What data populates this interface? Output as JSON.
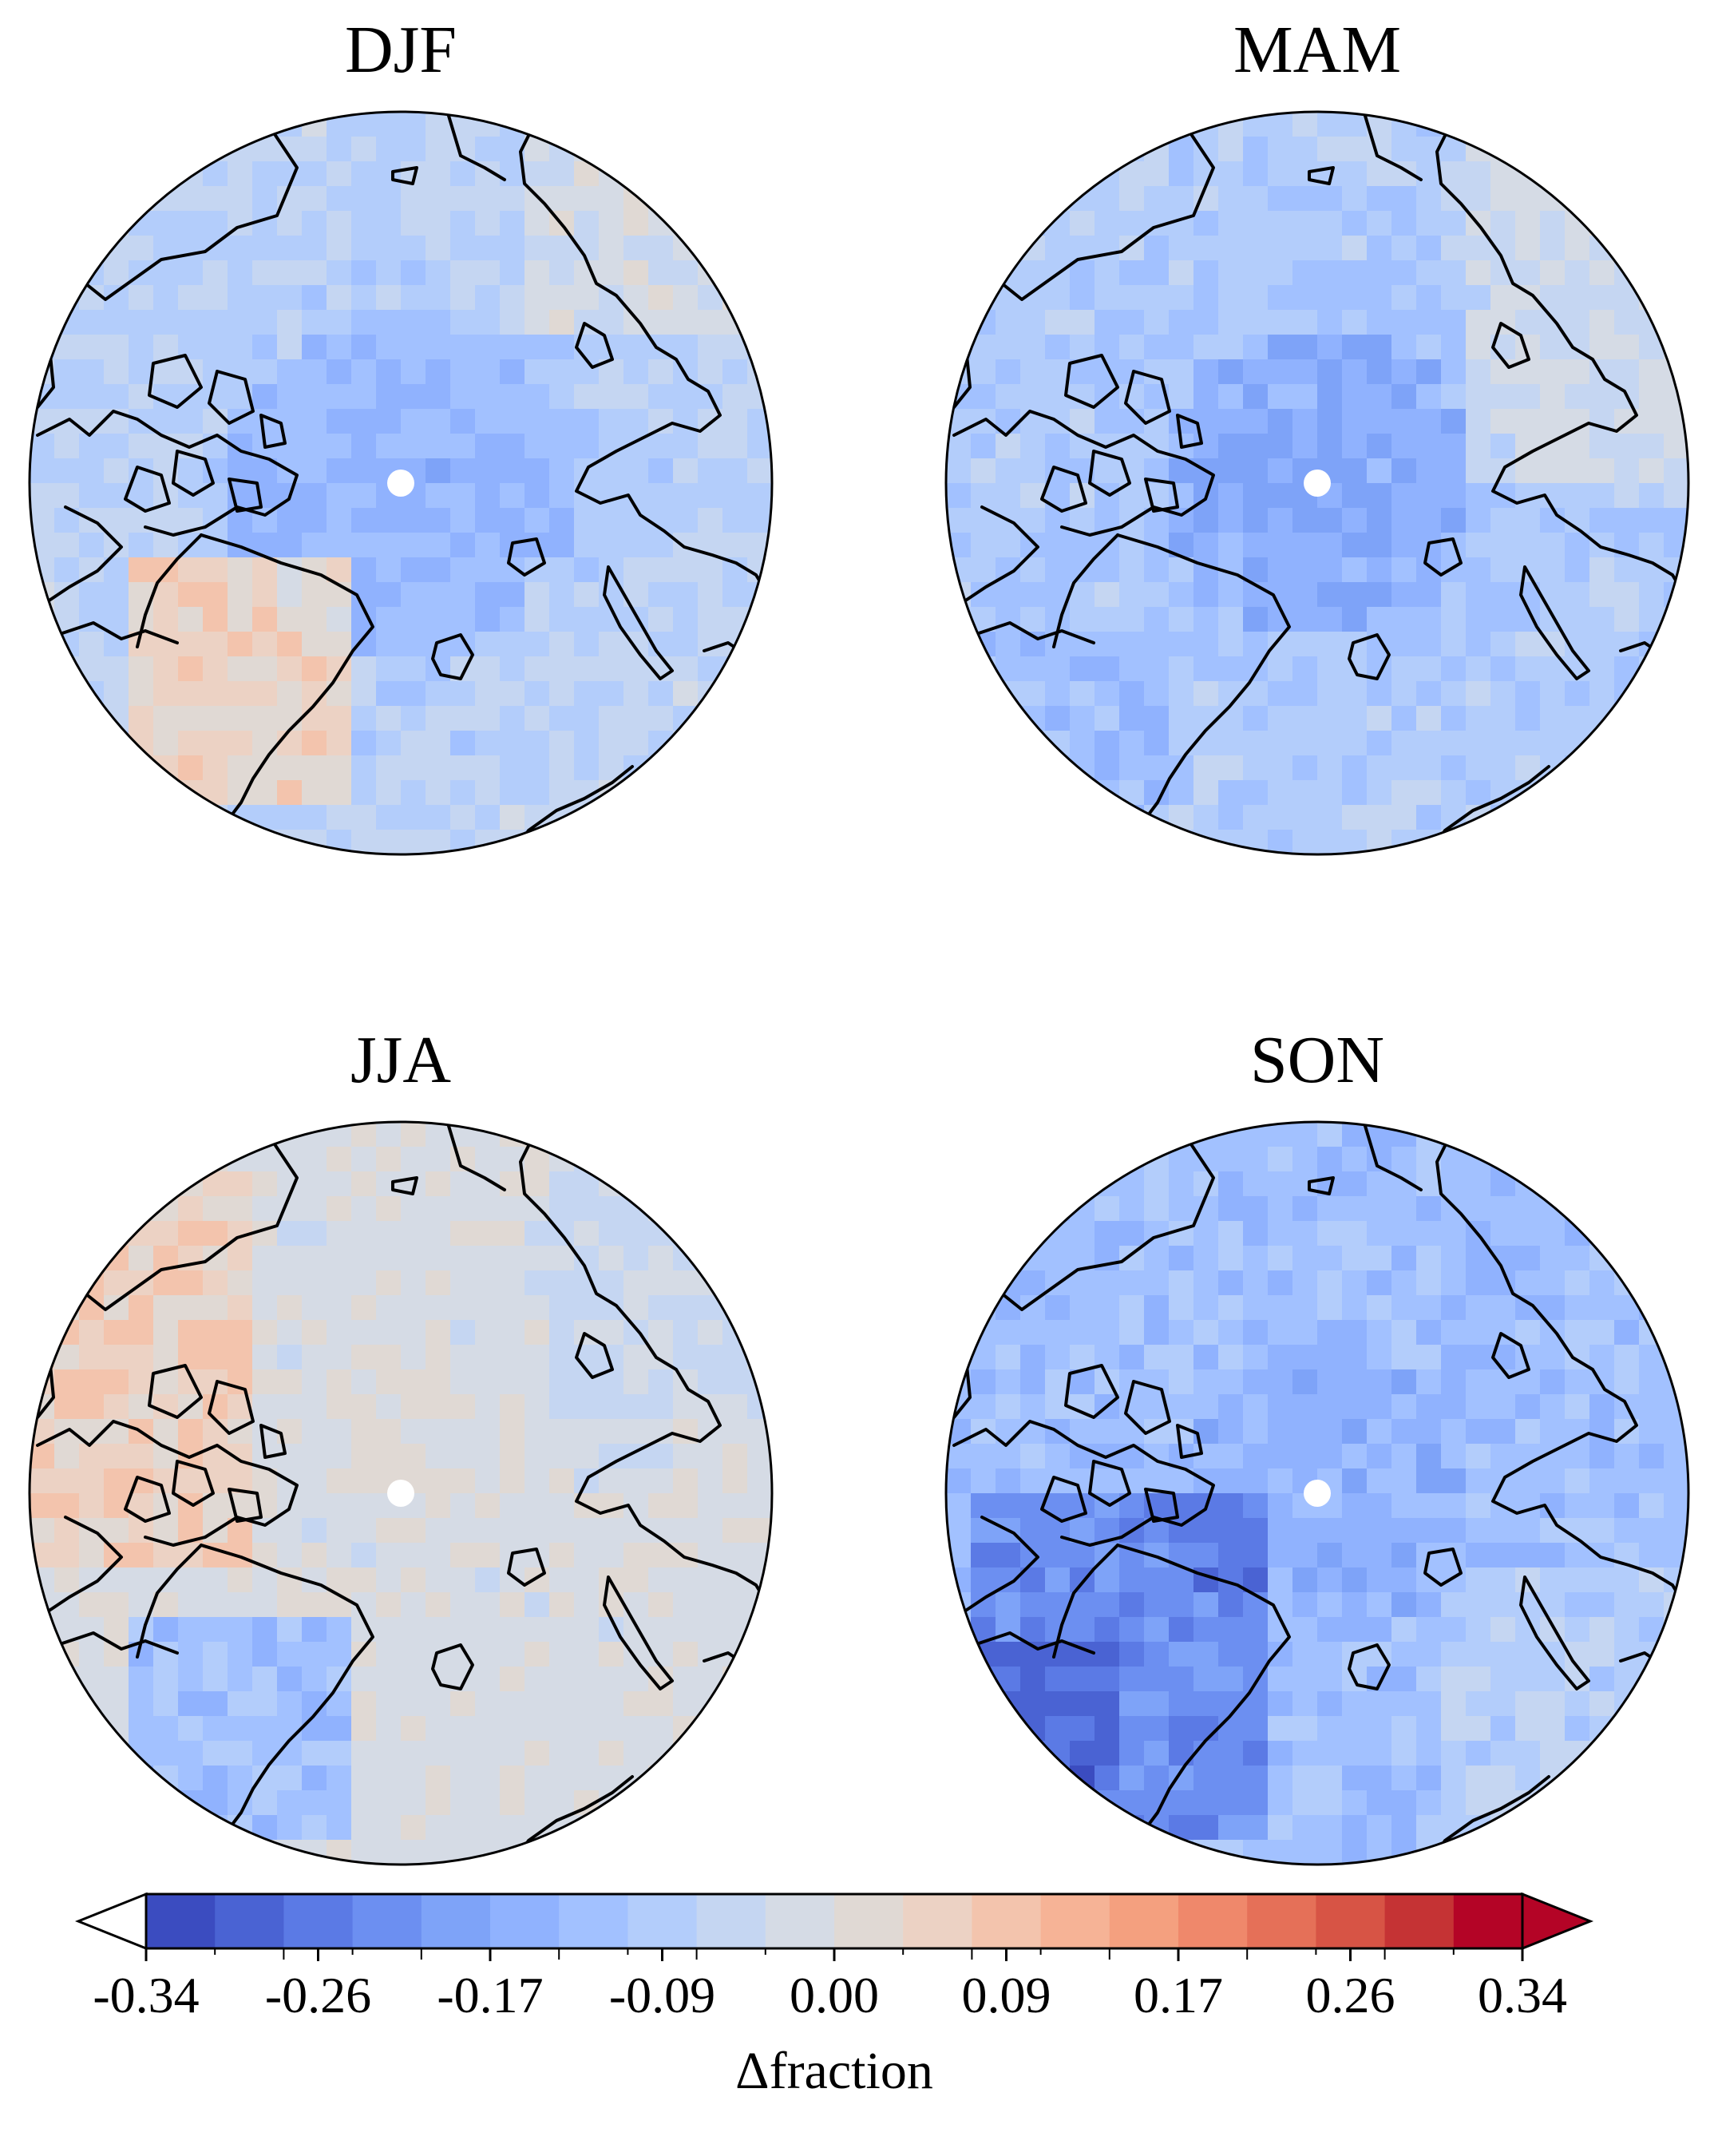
{
  "panels": [
    {
      "title": "DJF"
    },
    {
      "title": "MAM"
    },
    {
      "title": "JJA"
    },
    {
      "title": "SON"
    }
  ],
  "colorbar": {
    "label": "Δfraction",
    "min": -0.34,
    "max": 0.34,
    "ticks": [
      "-0.34",
      "-0.26",
      "-0.17",
      "-0.09",
      "0.00",
      "0.09",
      "0.17",
      "0.26",
      "0.34"
    ],
    "colors": [
      "#3b4cc0",
      "#4a63d3",
      "#5b7ae5",
      "#6c8ff1",
      "#7ea3f8",
      "#90b2fe",
      "#a2c1ff",
      "#b3cdfb",
      "#c5d6f2",
      "#d5dbe5",
      "#e0d9d4",
      "#ecd2c4",
      "#f3c4ad",
      "#f6b396",
      "#f4a07f",
      "#ef886b",
      "#e57058",
      "#d75445",
      "#c53334",
      "#b40426"
    ],
    "extend": "both"
  }
}
